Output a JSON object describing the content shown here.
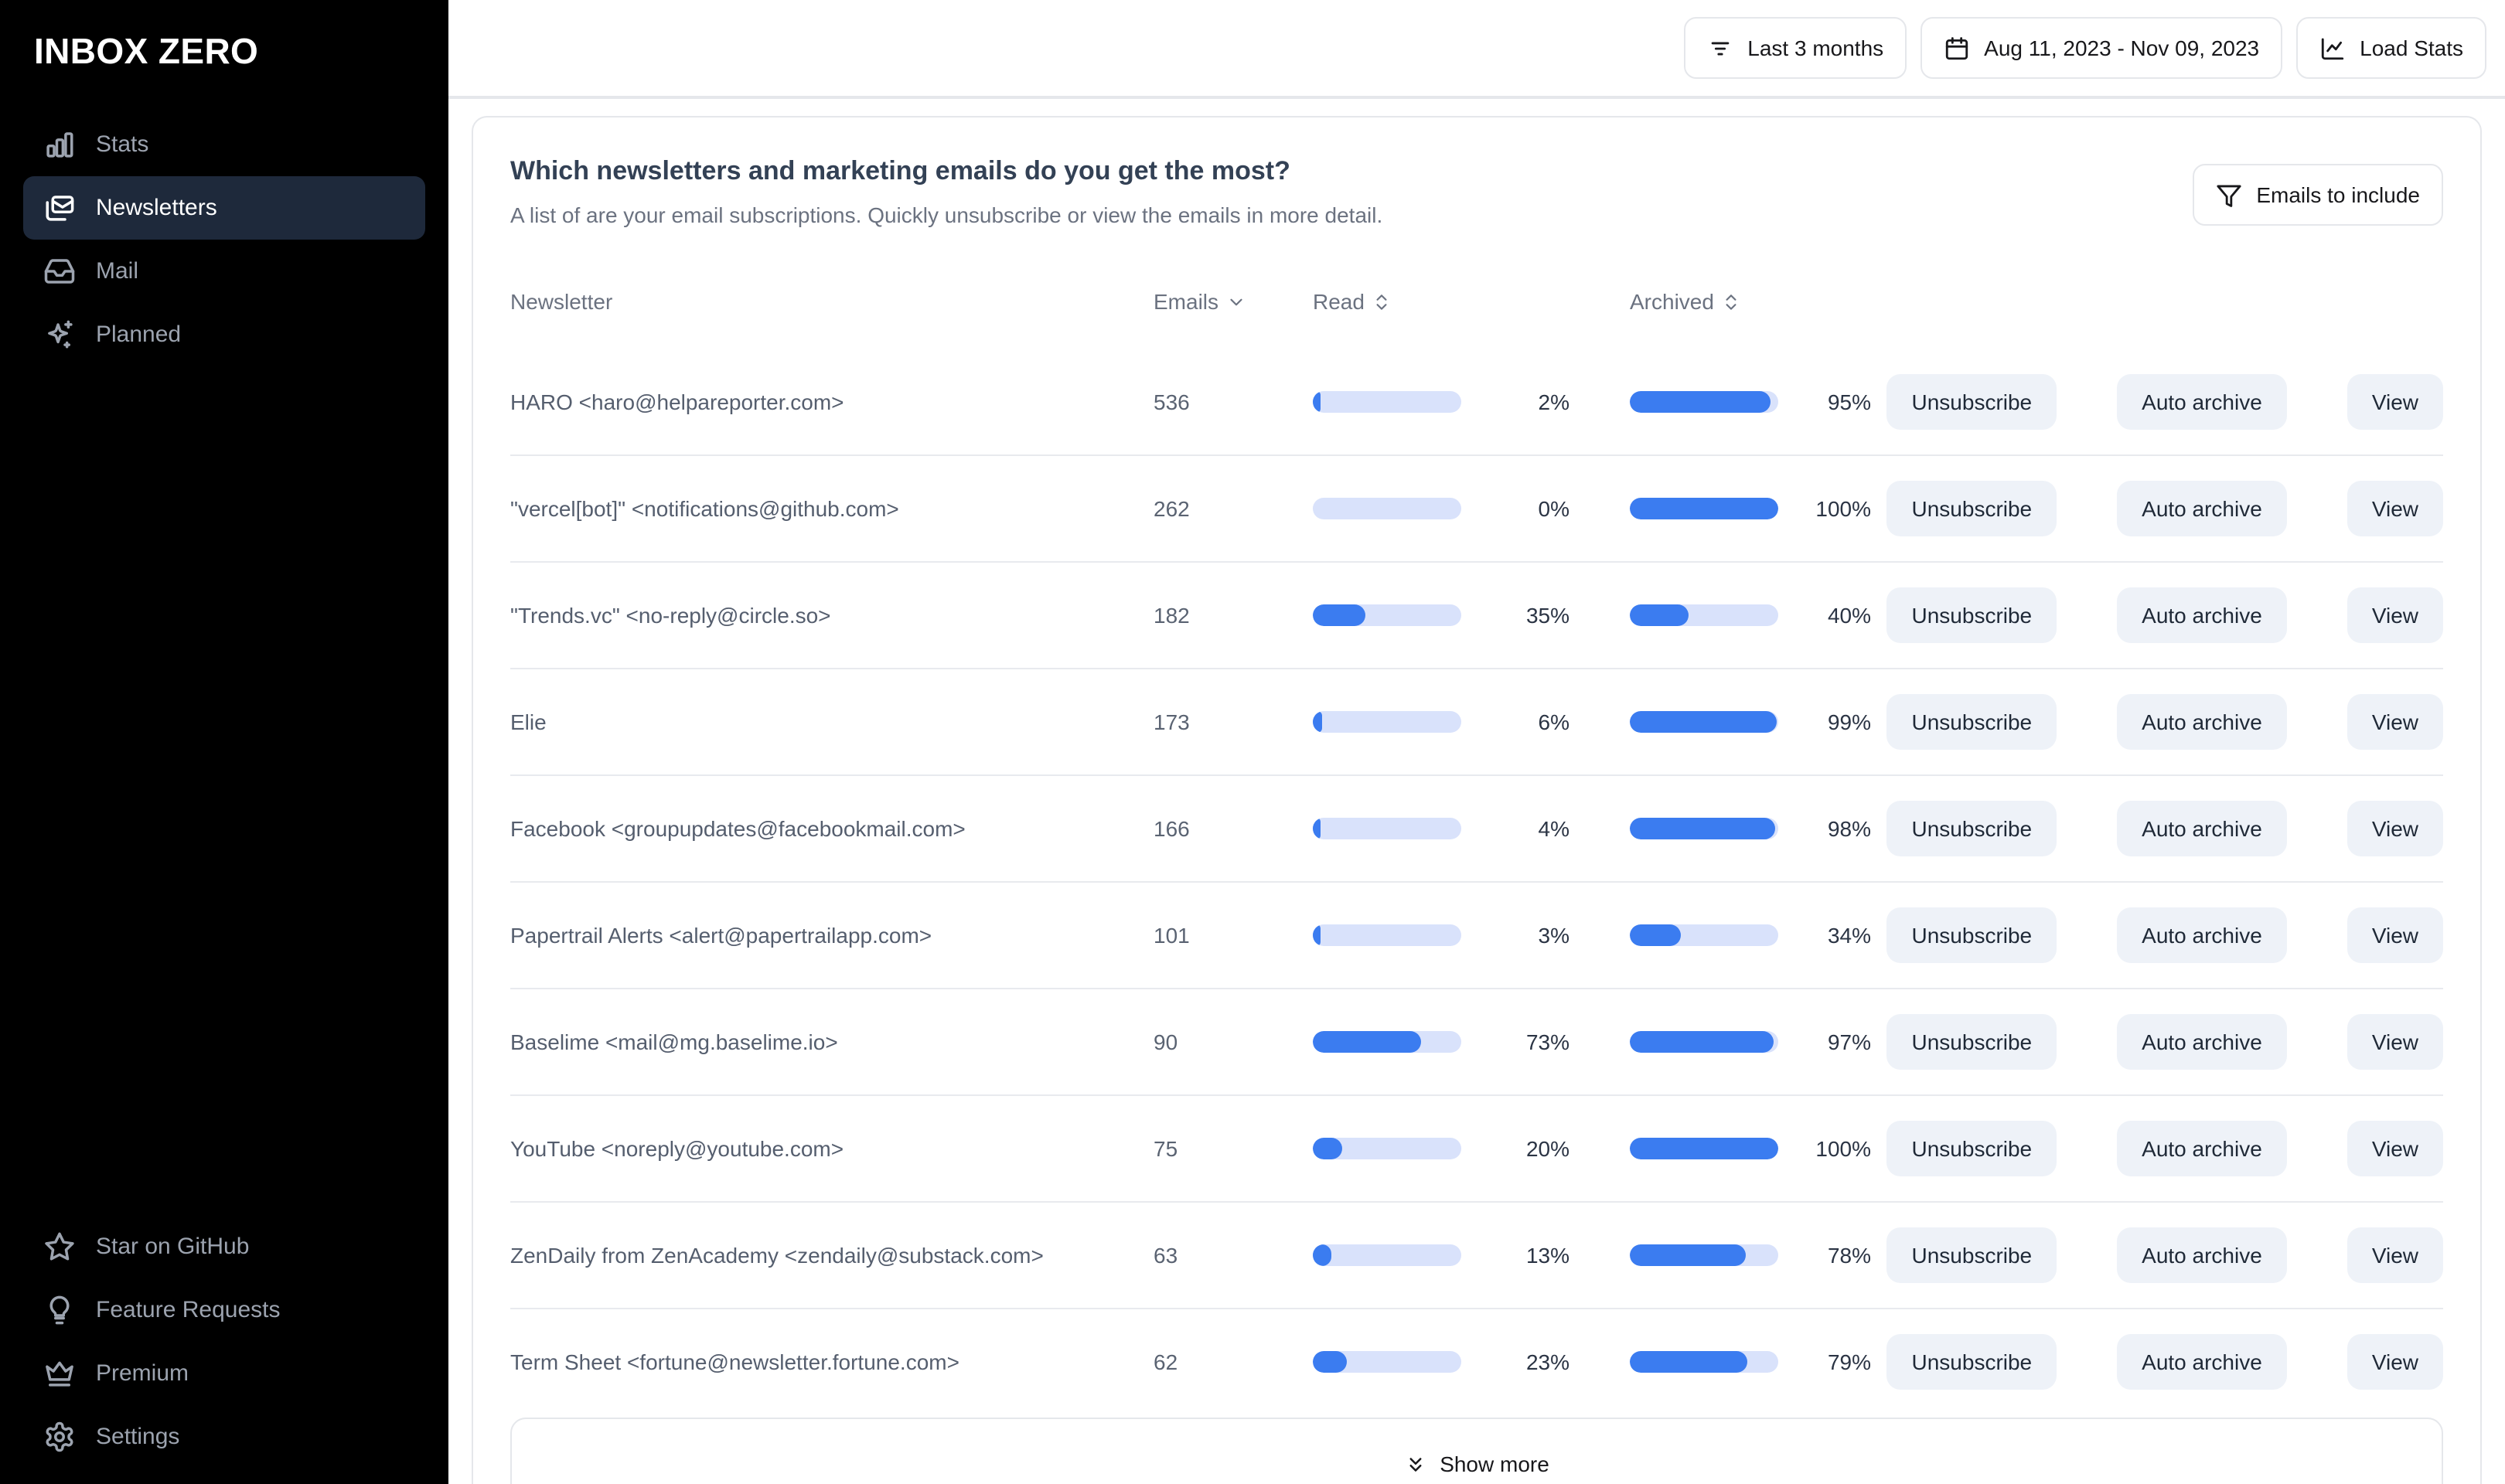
{
  "sidebar": {
    "logo": "INBOX ZERO",
    "items": [
      {
        "label": "Stats",
        "icon": "bar-chart-icon"
      },
      {
        "label": "Newsletters",
        "icon": "newsletters-icon"
      },
      {
        "label": "Mail",
        "icon": "inbox-icon"
      },
      {
        "label": "Planned",
        "icon": "sparkles-icon"
      }
    ],
    "footer_items": [
      {
        "label": "Star on GitHub",
        "icon": "star-icon"
      },
      {
        "label": "Feature Requests",
        "icon": "lightbulb-icon"
      },
      {
        "label": "Premium",
        "icon": "crown-icon"
      },
      {
        "label": "Settings",
        "icon": "gear-icon"
      }
    ]
  },
  "topbar": {
    "range_button": "Last 3 months",
    "date_button": "Aug 11, 2023 - Nov 09, 2023",
    "load_stats_button": "Load Stats"
  },
  "panel": {
    "title": "Which newsletters and marketing emails do you get the most?",
    "subtitle": "A list of are your email subscriptions. Quickly unsubscribe or view the emails in more detail.",
    "filter_button": "Emails to include",
    "show_more": "Show more"
  },
  "table": {
    "columns": {
      "newsletter": "Newsletter",
      "emails": "Emails",
      "read": "Read",
      "archived": "Archived"
    },
    "actions": {
      "unsubscribe": "Unsubscribe",
      "auto_archive": "Auto archive",
      "view": "View"
    },
    "rows": [
      {
        "name": "HARO <haro@helpareporter.com>",
        "emails": "536",
        "read_pct": 2,
        "read_label": "2%",
        "archived_pct": 95,
        "archived_label": "95%"
      },
      {
        "name": "\"vercel[bot]\" <notifications@github.com>",
        "emails": "262",
        "read_pct": 0,
        "read_label": "0%",
        "archived_pct": 100,
        "archived_label": "100%"
      },
      {
        "name": "\"Trends.vc\" <no-reply@circle.so>",
        "emails": "182",
        "read_pct": 35,
        "read_label": "35%",
        "archived_pct": 40,
        "archived_label": "40%"
      },
      {
        "name": "Elie",
        "emails": "173",
        "read_pct": 6,
        "read_label": "6%",
        "archived_pct": 99,
        "archived_label": "99%"
      },
      {
        "name": "Facebook <groupupdates@facebookmail.com>",
        "emails": "166",
        "read_pct": 4,
        "read_label": "4%",
        "archived_pct": 98,
        "archived_label": "98%"
      },
      {
        "name": "Papertrail Alerts <alert@papertrailapp.com>",
        "emails": "101",
        "read_pct": 3,
        "read_label": "3%",
        "archived_pct": 34,
        "archived_label": "34%"
      },
      {
        "name": "Baselime <mail@mg.baselime.io>",
        "emails": "90",
        "read_pct": 73,
        "read_label": "73%",
        "archived_pct": 97,
        "archived_label": "97%"
      },
      {
        "name": "YouTube <noreply@youtube.com>",
        "emails": "75",
        "read_pct": 20,
        "read_label": "20%",
        "archived_pct": 100,
        "archived_label": "100%"
      },
      {
        "name": "ZenDaily from ZenAcademy <zendaily@substack.com>",
        "emails": "63",
        "read_pct": 13,
        "read_label": "13%",
        "archived_pct": 78,
        "archived_label": "78%"
      },
      {
        "name": "Term Sheet <fortune@newsletter.fortune.com>",
        "emails": "62",
        "read_pct": 23,
        "read_label": "23%",
        "archived_pct": 79,
        "archived_label": "79%"
      }
    ]
  },
  "colors": {
    "sidebar_bg": "#000000",
    "active_nav_bg": "#1e293b",
    "bar_fill": "#3b7cf0",
    "bar_track": "#d9e2fb",
    "action_btn_bg": "#eef2f8",
    "border": "#e5e7eb"
  }
}
